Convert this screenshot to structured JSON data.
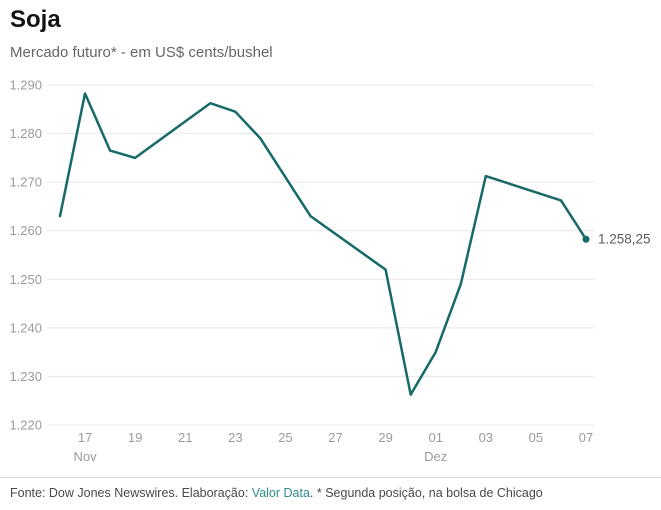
{
  "header": {
    "title": "Soja",
    "subtitle": "Mercado futuro* - em US$ cents/bushel"
  },
  "colors": {
    "line": "#176a68",
    "grid": "#e7e7e7",
    "tick_label": "#9b9b9b",
    "annotation": "#595959",
    "link": "#2e8b90"
  },
  "chart_data": {
    "type": "line",
    "title": "Soja",
    "subtitle": "Mercado futuro* - em US$ cents/bushel",
    "ylabel": "US$ cents/bushel",
    "xlabel": "",
    "grid": true,
    "legend": false,
    "ylim": [
      1220,
      1290
    ],
    "x_range_days": [
      0,
      21
    ],
    "points": [
      {
        "date": "16 Nov",
        "day": 0,
        "value": 1263.0
      },
      {
        "date": "17 Nov",
        "day": 1,
        "value": 1288.25
      },
      {
        "date": "18 Nov",
        "day": 2,
        "value": 1276.5
      },
      {
        "date": "19 Nov",
        "day": 3,
        "value": 1275.0
      },
      {
        "date": "22 Nov",
        "day": 6,
        "value": 1286.25
      },
      {
        "date": "23 Nov",
        "day": 7,
        "value": 1284.5
      },
      {
        "date": "24 Nov",
        "day": 8,
        "value": 1279.0
      },
      {
        "date": "26 Nov",
        "day": 10,
        "value": 1263.0
      },
      {
        "date": "29 Nov",
        "day": 13,
        "value": 1252.0
      },
      {
        "date": "30 Nov",
        "day": 14,
        "value": 1226.25
      },
      {
        "date": "01 Dez",
        "day": 15,
        "value": 1235.0
      },
      {
        "date": "02 Dez",
        "day": 16,
        "value": 1249.0
      },
      {
        "date": "03 Dez",
        "day": 17,
        "value": 1271.25
      },
      {
        "date": "06 Dez",
        "day": 20,
        "value": 1266.25
      },
      {
        "date": "07 Dez",
        "day": 21,
        "value": 1258.25
      }
    ],
    "y_ticks": [
      {
        "label": "1.290",
        "value": 1290
      },
      {
        "label": "1.280",
        "value": 1280
      },
      {
        "label": "1.270",
        "value": 1270
      },
      {
        "label": "1.260",
        "value": 1260
      },
      {
        "label": "1.250",
        "value": 1250
      },
      {
        "label": "1.240",
        "value": 1240
      },
      {
        "label": "1.230",
        "value": 1230
      },
      {
        "label": "1.220",
        "value": 1220
      }
    ],
    "x_ticks": [
      {
        "label": "17",
        "sub": "Nov",
        "day": 1
      },
      {
        "label": "19",
        "sub": "",
        "day": 3
      },
      {
        "label": "21",
        "sub": "",
        "day": 5
      },
      {
        "label": "23",
        "sub": "",
        "day": 7
      },
      {
        "label": "25",
        "sub": "",
        "day": 9
      },
      {
        "label": "27",
        "sub": "",
        "day": 11
      },
      {
        "label": "29",
        "sub": "",
        "day": 13
      },
      {
        "label": "01",
        "sub": "Dez",
        "day": 15
      },
      {
        "label": "03",
        "sub": "",
        "day": 17
      },
      {
        "label": "05",
        "sub": "",
        "day": 19
      },
      {
        "label": "07",
        "sub": "",
        "day": 21
      }
    ],
    "annotation": {
      "text": "1.258,25"
    }
  },
  "footer": {
    "prefix": "Fonte: Dow Jones Newswires. Elaboração: ",
    "link": "Valor Data",
    "suffix": ". * Segunda posição, na bolsa de Chicago"
  }
}
